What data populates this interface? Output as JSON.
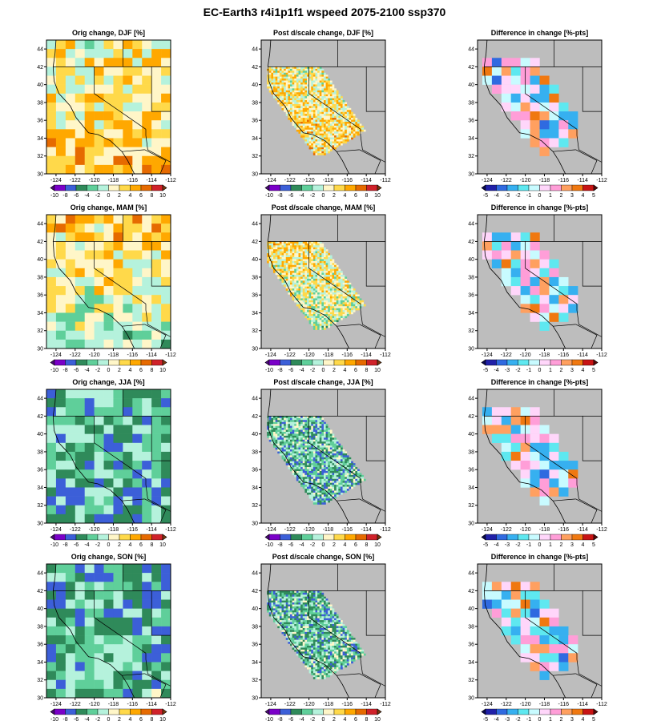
{
  "title": "EC-Earth3 r4i1p1f1 wspeed 2075-2100 ssp370",
  "columns": [
    "orig",
    "post",
    "diff"
  ],
  "rows": [
    {
      "season": "DJF",
      "orig_title": "Orig change, DJF [%]",
      "post_title": "Post d/scale change, DJF [%]",
      "diff_title": "Difference in change [%-pts]"
    },
    {
      "season": "MAM",
      "orig_title": "Orig change, MAM [%]",
      "post_title": "Post d/scale change, MAM [%]",
      "diff_title": "Difference in change [%-pts]"
    },
    {
      "season": "JJA",
      "orig_title": "Orig change, JJA [%]",
      "post_title": "Post d/scale change, JJA [%]",
      "diff_title": "Difference in change [%-pts]"
    },
    {
      "season": "SON",
      "orig_title": "Orig change, SON [%]",
      "post_title": "Post d/scale change, SON [%]",
      "diff_title": "Difference in change [%-pts]"
    }
  ],
  "axes": {
    "lon_ticks": [
      "-124",
      "-122",
      "-120",
      "-118",
      "-116",
      "-114",
      "-112"
    ],
    "lat_ticks": [
      "44",
      "42",
      "40",
      "38",
      "36",
      "34",
      "32",
      "30"
    ],
    "lon_range": [
      -125,
      -112
    ],
    "lat_range": [
      30,
      45
    ]
  },
  "colorbars": {
    "change": {
      "ticks": [
        "-10",
        "-8",
        "-6",
        "-4",
        "-2",
        "0",
        "2",
        "4",
        "6",
        "8",
        "10"
      ],
      "colors": [
        "#7a00c8",
        "#3c5fd8",
        "#2f8a5a",
        "#5fcf9a",
        "#b5f2dc",
        "#fff6c8",
        "#ffd94a",
        "#ffa800",
        "#e66a00",
        "#d0222a"
      ],
      "under_color": "#4b0a78",
      "over_color": "#7a3a10"
    },
    "diff": {
      "ticks": [
        "-5",
        "-4",
        "-3",
        "-2",
        "-1",
        "0",
        "1",
        "2",
        "3",
        "4",
        "5"
      ],
      "colors": [
        "#2020a8",
        "#2f6ae0",
        "#36b0f0",
        "#5ee8f0",
        "#c8fbff",
        "#ffd6fa",
        "#ff9ed8",
        "#ffa060",
        "#f07810",
        "#c81414"
      ],
      "under_color": "#0a0a50",
      "over_color": "#5a0a0a"
    }
  },
  "map_colors": {
    "background": "#bdbdbd",
    "coast": "#000000"
  }
}
